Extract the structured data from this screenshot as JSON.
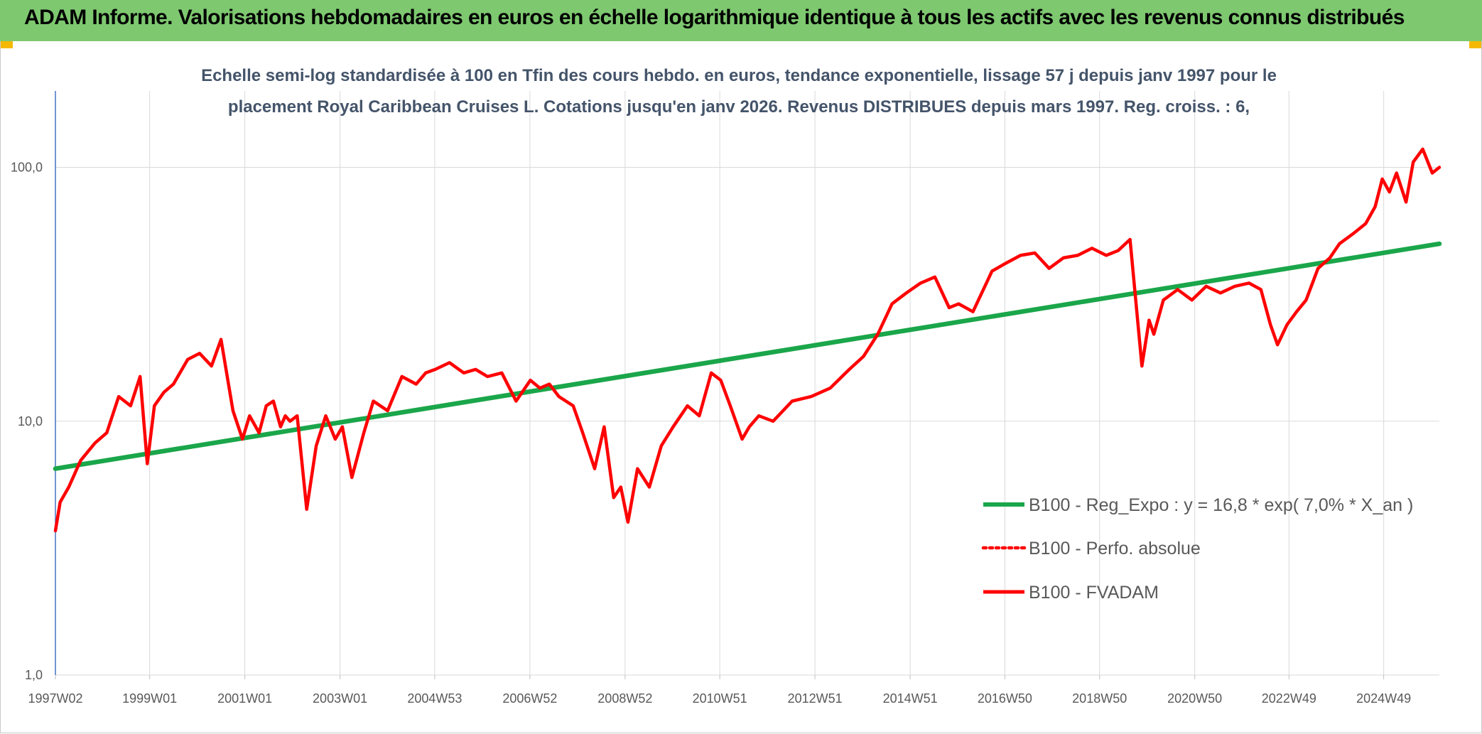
{
  "header": {
    "title": "ADAM Informe. Valorisations hebdomadaires en euros en échelle logarithmique identique à tous les actifs avec les revenus connus distribués"
  },
  "colors": {
    "banner": "#7ec870",
    "corner": "#f5b800",
    "regression": "#1aa64a",
    "fvadam": "#ff0000",
    "grid": "#d9d9d9",
    "axis": "#4472c4"
  },
  "chart_data": {
    "type": "line",
    "subtitle_lines": [
      "Echelle semi-log standardisée à 100 en Tfin des cours hebdo. en euros, tendance exponentielle, lissage 57 j depuis janv 1997 pour le",
      "placement Royal Caribbean Cruises L. Cotations jusqu'en janv 2026. Revenus DISTRIBUES depuis mars 1997. Reg. croiss. : 6,"
    ],
    "y_scale": "log",
    "ylim": [
      1,
      200
    ],
    "y_ticks": [
      1,
      10,
      100
    ],
    "y_tick_labels": [
      "1,0",
      "10,0",
      "100,0"
    ],
    "xlim": [
      1997.02,
      2026.1
    ],
    "x_ticks": [
      1997.02,
      1999.0,
      2001.0,
      2003.0,
      2004.99,
      2006.99,
      2008.99,
      2010.98,
      2012.98,
      2014.98,
      2016.97,
      2018.96,
      2020.96,
      2022.94,
      2024.93
    ],
    "x_tick_labels": [
      "1997W02",
      "1999W01",
      "2001W01",
      "2003W01",
      "2004W53",
      "2006W52",
      "2008W52",
      "2010W51",
      "2012W51",
      "2014W51",
      "2016W50",
      "2018W50",
      "2020W50",
      "2022W49",
      "2024W49"
    ],
    "grid": true,
    "legend_position": "right",
    "legend": [
      {
        "label": "B100 - Reg_Expo : y = 16,8 * exp( 7,0% *  X_an )",
        "style": "solid-green"
      },
      {
        "label": "B100 - Perfo. absolue",
        "style": "dotted-red"
      },
      {
        "label": "B100 - FVADAM",
        "style": "solid-red"
      }
    ],
    "series": [
      {
        "name": "B100 - Reg_Expo : y = 16,8 * exp( 7,0% *  X_an )",
        "x": [
          1997.02,
          2026.1
        ],
        "y": [
          6.5,
          50
        ]
      },
      {
        "name": "B100 - FVADAM",
        "x": [
          1997.02,
          1997.12,
          1997.3,
          1997.55,
          1997.85,
          1998.1,
          1998.35,
          1998.6,
          1998.8,
          1998.95,
          1999.1,
          1999.3,
          1999.5,
          1999.8,
          2000.05,
          2000.3,
          2000.5,
          2000.75,
          2000.95,
          2001.1,
          2001.3,
          2001.45,
          2001.6,
          2001.75,
          2001.85,
          2001.95,
          2002.1,
          2002.3,
          2002.5,
          2002.7,
          2002.9,
          2003.05,
          2003.25,
          2003.5,
          2003.7,
          2004.0,
          2004.3,
          2004.6,
          2004.8,
          2005.0,
          2005.3,
          2005.6,
          2005.85,
          2006.1,
          2006.4,
          2006.7,
          2007.0,
          2007.2,
          2007.4,
          2007.6,
          2007.9,
          2008.1,
          2008.35,
          2008.55,
          2008.75,
          2008.9,
          2009.05,
          2009.25,
          2009.5,
          2009.75,
          2010.0,
          2010.3,
          2010.55,
          2010.8,
          2011.0,
          2011.2,
          2011.45,
          2011.6,
          2011.8,
          2012.1,
          2012.5,
          2012.9,
          2013.3,
          2013.7,
          2014.0,
          2014.3,
          2014.6,
          2014.9,
          2015.2,
          2015.5,
          2015.8,
          2016.0,
          2016.3,
          2016.7,
          2017.0,
          2017.3,
          2017.6,
          2017.9,
          2018.2,
          2018.5,
          2018.8,
          2019.1,
          2019.35,
          2019.6,
          2019.85,
          2020.0,
          2020.1,
          2020.3,
          2020.6,
          2020.9,
          2021.2,
          2021.5,
          2021.8,
          2022.1,
          2022.35,
          2022.55,
          2022.7,
          2022.9,
          2023.1,
          2023.3,
          2023.55,
          2023.8,
          2024.0,
          2024.3,
          2024.55,
          2024.75,
          2024.9,
          2025.05,
          2025.2,
          2025.4,
          2025.55,
          2025.75,
          2025.95,
          2026.1
        ],
        "y": [
          3.7,
          4.8,
          5.5,
          7.0,
          8.2,
          9.0,
          12.5,
          11.5,
          15.0,
          6.8,
          11.5,
          13.0,
          14.0,
          17.5,
          18.5,
          16.5,
          21.0,
          11.0,
          8.5,
          10.5,
          9.0,
          11.5,
          12.0,
          9.5,
          10.5,
          10.0,
          10.5,
          4.5,
          8.0,
          10.5,
          8.5,
          9.5,
          6.0,
          9.0,
          12.0,
          11.0,
          15.0,
          14.0,
          15.5,
          16.0,
          17.0,
          15.5,
          16.0,
          15.0,
          15.5,
          12.0,
          14.5,
          13.5,
          14.0,
          12.5,
          11.5,
          9.0,
          6.5,
          9.5,
          5.0,
          5.5,
          4.0,
          6.5,
          5.5,
          8.0,
          9.5,
          11.5,
          10.5,
          15.5,
          14.5,
          11.5,
          8.5,
          9.5,
          10.5,
          10.0,
          12.0,
          12.5,
          13.5,
          16.0,
          18.0,
          22.0,
          29.0,
          32.0,
          35.0,
          37.0,
          28.0,
          29.0,
          27.0,
          39.0,
          42.0,
          45.0,
          46.0,
          40.0,
          44.0,
          45.0,
          48.0,
          45.0,
          47.0,
          52.0,
          16.5,
          25.0,
          22.0,
          30.0,
          33.0,
          30.0,
          34.0,
          32.0,
          34.0,
          35.0,
          33.0,
          24.0,
          20.0,
          24.0,
          27.0,
          30.0,
          40.0,
          44.0,
          50.0,
          55.0,
          60.0,
          70.0,
          90.0,
          80.0,
          95.0,
          73.0,
          105.0,
          118.0,
          95.0,
          100.0
        ]
      }
    ]
  }
}
